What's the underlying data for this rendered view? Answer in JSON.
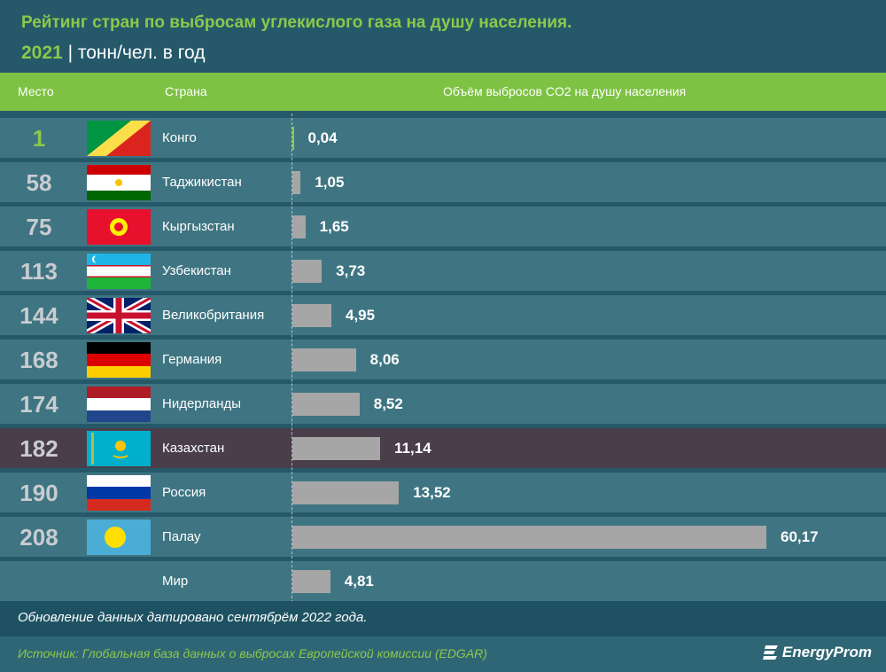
{
  "title": {
    "line1": "Рейтинг стран по выбросам углекислого газа на душу населения.",
    "year": "2021",
    "unit": "| тонн/чел. в год"
  },
  "header": {
    "rank": "Место",
    "country": "Страна",
    "value": "Объём выбросов CO2 на душу населения"
  },
  "chart_data": {
    "type": "bar",
    "orientation": "horizontal",
    "title": "Рейтинг стран по выбросам углекислого газа на душу населения. 2021 | тонн/чел. в год",
    "categories": [
      "Конго",
      "Таджикистан",
      "Кыргызстан",
      "Узбекистан",
      "Великобритания",
      "Германия",
      "Нидерланды",
      "Казахстан",
      "Россия",
      "Палау",
      "Мир"
    ],
    "ranks": [
      "1",
      "58",
      "75",
      "113",
      "144",
      "168",
      "174",
      "182",
      "190",
      "208",
      ""
    ],
    "values": [
      0.04,
      1.05,
      1.65,
      3.73,
      4.95,
      8.06,
      8.52,
      11.14,
      13.52,
      60.17,
      4.81
    ],
    "labels": [
      "0,04",
      "1,05",
      "1,65",
      "3,73",
      "4,95",
      "8,06",
      "8,52",
      "11,14",
      "13,52",
      "60,17",
      "4,81"
    ],
    "flags": [
      "congo",
      "tajikistan",
      "kyrgyzstan",
      "uzbekistan",
      "uk",
      "germany",
      "netherlands",
      "kazakhstan",
      "russia",
      "palau",
      ""
    ],
    "highlight": "Казахстан",
    "bar_color": "#a6a6a6",
    "highlight_color": "#4a3e4b",
    "accent": "#7dc242",
    "xlim": [
      0,
      60.17
    ]
  },
  "footer": {
    "note": "Обновление данных датировано сентябрём 2022 года.",
    "source": "Источник: Глобальная база данных о выбросах Европейской комиссии (EDGAR)",
    "logo": "EnergyProm"
  }
}
